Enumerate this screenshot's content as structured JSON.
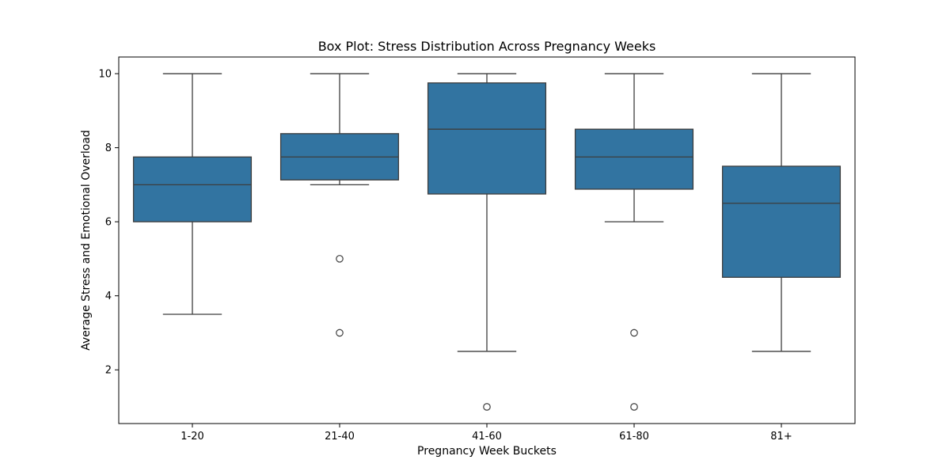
{
  "chart_data": {
    "type": "box",
    "title": "Box Plot: Stress Distribution Across Pregnancy Weeks",
    "xlabel": "Pregnancy Week Buckets",
    "ylabel": "Average Stress and Emotional Overload",
    "categories": [
      "1-20",
      "21-40",
      "41-60",
      "61-80",
      "81+"
    ],
    "ylim": [
      0.55,
      10.45
    ],
    "yticks": [
      2,
      4,
      6,
      8,
      10
    ],
    "grid": false,
    "box_color": "#3274a1",
    "line_color": "#3d3d3d",
    "boxes": [
      {
        "category": "1-20",
        "whisker_low": 3.5,
        "q1": 6.0,
        "median": 7.0,
        "q3": 7.75,
        "whisker_high": 10,
        "outliers": []
      },
      {
        "category": "21-40",
        "whisker_low": 7.0,
        "q1": 7.13,
        "median": 7.75,
        "q3": 8.38,
        "whisker_high": 10,
        "outliers": [
          5,
          3
        ]
      },
      {
        "category": "41-60",
        "whisker_low": 2.5,
        "q1": 6.75,
        "median": 8.5,
        "q3": 9.75,
        "whisker_high": 10,
        "outliers": [
          1
        ]
      },
      {
        "category": "61-80",
        "whisker_low": 6.0,
        "q1": 6.88,
        "median": 7.75,
        "q3": 8.5,
        "whisker_high": 10,
        "outliers": [
          3,
          1
        ]
      },
      {
        "category": "81+",
        "whisker_low": 2.5,
        "q1": 4.5,
        "median": 6.5,
        "q3": 7.5,
        "whisker_high": 10,
        "outliers": []
      }
    ]
  }
}
